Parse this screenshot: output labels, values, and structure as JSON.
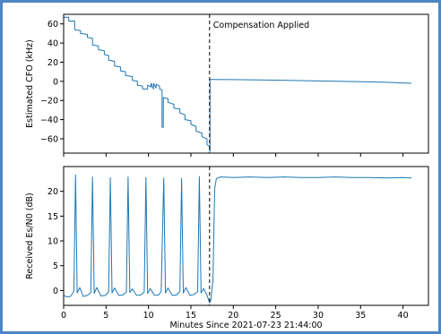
{
  "colors": {
    "line": "#1f77b4",
    "event": "#000000",
    "frame": "#4f86c6",
    "axes": "#000000"
  },
  "chart_data": [
    {
      "type": "line",
      "title": "",
      "xlabel": "",
      "ylabel": "Estimated CFO (kHz)",
      "xlim": [
        0,
        43
      ],
      "ylim": [
        -75,
        70
      ],
      "xticks": [
        0,
        5,
        10,
        15,
        20,
        25,
        30,
        35,
        40
      ],
      "xtick_labels_shown": false,
      "yticks": [
        -60,
        -40,
        -20,
        0,
        20,
        40,
        60
      ],
      "ytick_labels": [
        "−60",
        "−40",
        "−20",
        "0",
        "20",
        "40",
        "60"
      ],
      "grid": false,
      "event_line": {
        "x": 17.2,
        "style": "dashed",
        "label": "Compensation Applied"
      },
      "series": [
        {
          "values": [
            [
              0.0,
              67
            ],
            [
              0.6,
              67
            ],
            [
              0.6,
              63
            ],
            [
              1.3,
              63
            ],
            [
              1.3,
              54
            ],
            [
              2.0,
              53
            ],
            [
              2.0,
              50
            ],
            [
              2.8,
              49
            ],
            [
              2.8,
              46
            ],
            [
              3.4,
              45
            ],
            [
              3.4,
              38
            ],
            [
              4.1,
              37
            ],
            [
              4.1,
              33
            ],
            [
              4.8,
              32
            ],
            [
              4.8,
              28
            ],
            [
              5.3,
              27
            ],
            [
              5.3,
              22
            ],
            [
              6.0,
              21
            ],
            [
              6.0,
              16
            ],
            [
              6.7,
              15
            ],
            [
              6.7,
              11
            ],
            [
              7.3,
              10
            ],
            [
              7.3,
              6
            ],
            [
              8.1,
              5
            ],
            [
              8.1,
              1
            ],
            [
              8.7,
              0
            ],
            [
              8.7,
              -4
            ],
            [
              9.3,
              -5
            ],
            [
              9.3,
              -8
            ],
            [
              9.9,
              -8
            ],
            [
              9.9,
              -4
            ],
            [
              10.3,
              -6
            ],
            [
              10.3,
              -2
            ],
            [
              10.6,
              -8
            ],
            [
              10.6,
              -2
            ],
            [
              10.9,
              -7
            ],
            [
              10.9,
              -3
            ],
            [
              11.3,
              -5
            ],
            [
              11.3,
              -8
            ],
            [
              11.6,
              -9
            ],
            [
              11.6,
              -48
            ],
            [
              11.75,
              -48
            ],
            [
              11.75,
              -17
            ],
            [
              12.3,
              -18
            ],
            [
              12.3,
              -22
            ],
            [
              13.0,
              -24
            ],
            [
              13.0,
              -28
            ],
            [
              13.7,
              -29
            ],
            [
              13.7,
              -33
            ],
            [
              14.3,
              -35
            ],
            [
              14.3,
              -40
            ],
            [
              15.0,
              -41
            ],
            [
              15.0,
              -45
            ],
            [
              15.6,
              -47
            ],
            [
              15.6,
              -52
            ],
            [
              16.3,
              -54
            ],
            [
              16.3,
              -58
            ],
            [
              16.9,
              -60
            ],
            [
              16.9,
              -66
            ],
            [
              17.2,
              -68
            ],
            [
              17.2,
              -73
            ],
            [
              17.25,
              -73
            ],
            [
              17.25,
              2
            ],
            [
              17.6,
              2
            ],
            [
              20,
              1.8
            ],
            [
              25,
              1.2
            ],
            [
              30,
              0.4
            ],
            [
              35,
              -0.4
            ],
            [
              38,
              -1.0
            ],
            [
              41,
              -2
            ]
          ]
        }
      ]
    },
    {
      "type": "line",
      "title": "",
      "xlabel": "Minutes Since 2021-07-23 21:44:00",
      "ylabel": "Received Es/N0 (dB)",
      "xlim": [
        0,
        43
      ],
      "ylim": [
        -3,
        25
      ],
      "xticks": [
        0,
        5,
        10,
        15,
        20,
        25,
        30,
        35,
        40
      ],
      "xtick_labels": [
        "0",
        "5",
        "10",
        "15",
        "20",
        "25",
        "30",
        "35",
        "40"
      ],
      "yticks": [
        0,
        5,
        10,
        15,
        20
      ],
      "ytick_labels": [
        "0",
        "5",
        "10",
        "15",
        "20"
      ],
      "grid": false,
      "event_line": {
        "x": 17.2,
        "style": "dashed",
        "label": ""
      },
      "series": [
        {
          "values": [
            [
              0.0,
              -1
            ],
            [
              0.4,
              -1.3
            ],
            [
              0.8,
              -1.2
            ],
            [
              1.2,
              -0.2
            ],
            [
              1.4,
              23.3
            ],
            [
              1.6,
              -0.5
            ],
            [
              1.9,
              0.6
            ],
            [
              2.3,
              -1.2
            ],
            [
              2.8,
              -1.0
            ],
            [
              3.2,
              -0.4
            ],
            [
              3.4,
              22.9
            ],
            [
              3.6,
              -0.6
            ],
            [
              3.9,
              0.6
            ],
            [
              4.4,
              -1.1
            ],
            [
              4.9,
              -1.0
            ],
            [
              5.3,
              -0.3
            ],
            [
              5.5,
              22.8
            ],
            [
              5.7,
              -0.5
            ],
            [
              6.0,
              0.5
            ],
            [
              6.5,
              -1.0
            ],
            [
              7.0,
              -0.9
            ],
            [
              7.4,
              -0.3
            ],
            [
              7.6,
              22.9
            ],
            [
              7.8,
              -0.4
            ],
            [
              8.1,
              0.3
            ],
            [
              8.6,
              -1.0
            ],
            [
              9.1,
              -0.9
            ],
            [
              9.5,
              -0.3
            ],
            [
              9.7,
              22.8
            ],
            [
              9.9,
              -0.6
            ],
            [
              10.2,
              0.4
            ],
            [
              10.7,
              -1.0
            ],
            [
              11.2,
              -0.9
            ],
            [
              11.5,
              -0.2
            ],
            [
              11.8,
              22.7
            ],
            [
              12.0,
              -0.5
            ],
            [
              12.3,
              0.5
            ],
            [
              12.8,
              -1.0
            ],
            [
              13.3,
              -0.9
            ],
            [
              13.7,
              -0.2
            ],
            [
              13.9,
              22.6
            ],
            [
              14.1,
              -0.5
            ],
            [
              14.4,
              0.6
            ],
            [
              14.9,
              -1.0
            ],
            [
              15.4,
              -0.8
            ],
            [
              15.8,
              -0.2
            ],
            [
              16.0,
              23.0
            ],
            [
              16.2,
              -0.5
            ],
            [
              16.5,
              0.4
            ],
            [
              16.9,
              -1.0
            ],
            [
              17.2,
              -2.5
            ],
            [
              17.35,
              -2.0
            ],
            [
              17.5,
              0.5
            ],
            [
              17.6,
              2
            ],
            [
              17.8,
              20.5
            ],
            [
              18.0,
              22.6
            ],
            [
              18.5,
              22.9
            ],
            [
              20,
              22.8
            ],
            [
              22,
              22.9
            ],
            [
              24,
              22.8
            ],
            [
              26,
              22.9
            ],
            [
              28,
              22.8
            ],
            [
              30,
              22.8
            ],
            [
              32,
              22.9
            ],
            [
              34,
              22.8
            ],
            [
              36,
              22.8
            ],
            [
              38,
              22.7
            ],
            [
              40,
              22.8
            ],
            [
              41,
              22.7
            ]
          ]
        }
      ]
    }
  ]
}
